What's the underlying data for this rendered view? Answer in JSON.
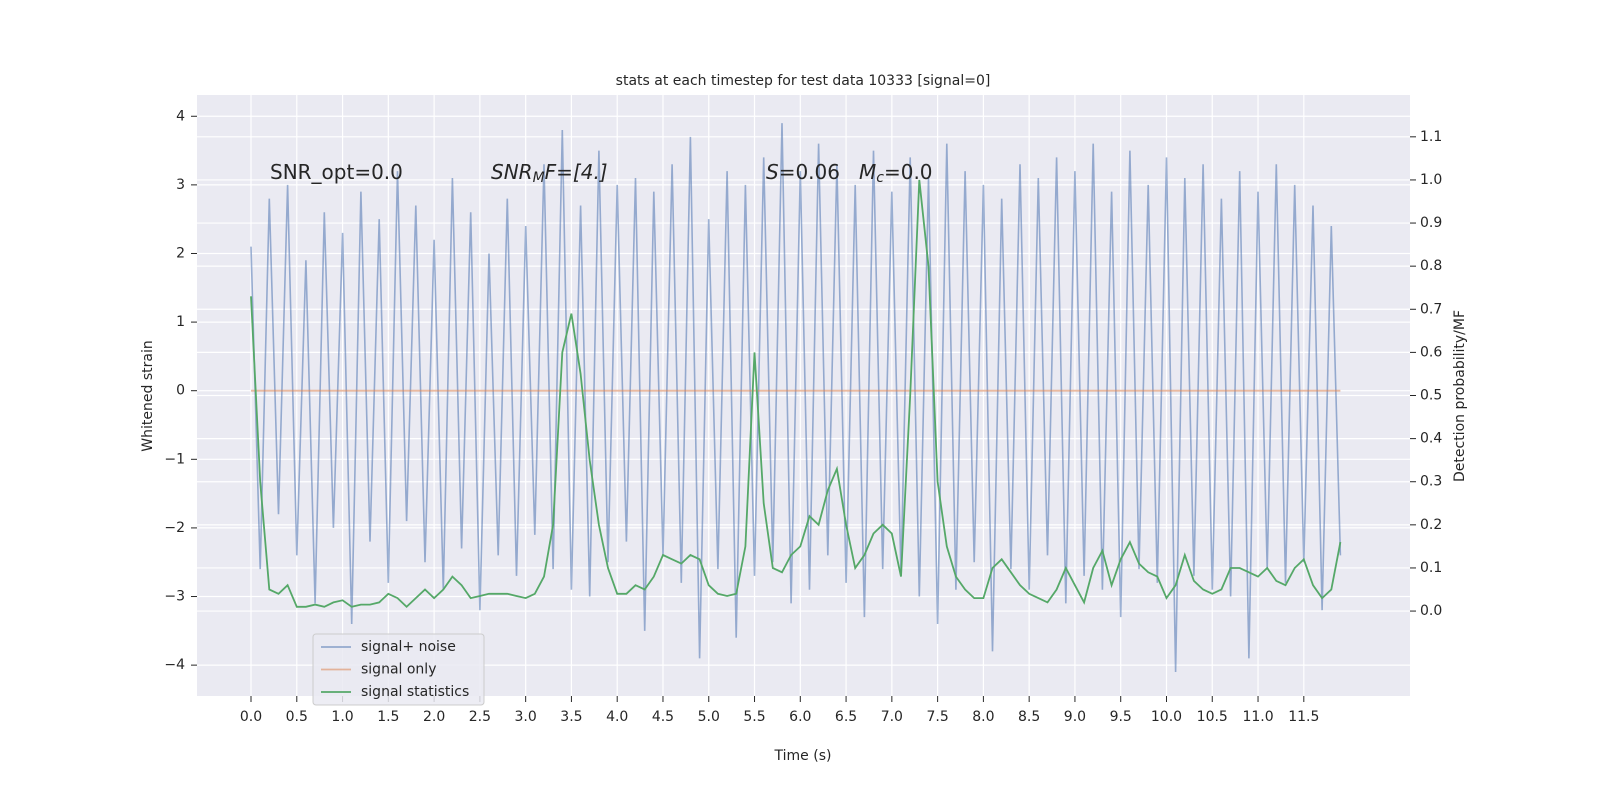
{
  "chart_data": {
    "type": "line",
    "title": "stats at each timestep for test data 10333 [signal=0]",
    "xlabel": "Time (s)",
    "ylabel": "Whitened strain",
    "y2label": "Detection probability/MF",
    "xlim": [
      -0.59,
      12.66
    ],
    "ylim": [
      -4.45,
      4.31
    ],
    "y2lim": [
      -0.197,
      1.197
    ],
    "xticks": [
      {
        "value": 0,
        "label": "0.0"
      },
      {
        "value": 0.5,
        "label": "0.5"
      },
      {
        "value": 1,
        "label": "1.0"
      },
      {
        "value": 1.5,
        "label": "1.5"
      },
      {
        "value": 2,
        "label": "2.0"
      },
      {
        "value": 2.5,
        "label": "2.5"
      },
      {
        "value": 3,
        "label": "3.0"
      },
      {
        "value": 3.5,
        "label": "3.5"
      },
      {
        "value": 4,
        "label": "4.0"
      },
      {
        "value": 4.5,
        "label": "4.5"
      },
      {
        "value": 5,
        "label": "5.0"
      },
      {
        "value": 5.5,
        "label": "5.5"
      },
      {
        "value": 6,
        "label": "6.0"
      },
      {
        "value": 6.5,
        "label": "6.5"
      },
      {
        "value": 7,
        "label": "7.0"
      },
      {
        "value": 7.5,
        "label": "7.5"
      },
      {
        "value": 8,
        "label": "8.0"
      },
      {
        "value": 8.5,
        "label": "8.5"
      },
      {
        "value": 9,
        "label": "9.0"
      },
      {
        "value": 9.5,
        "label": "9.5"
      },
      {
        "value": 10,
        "label": "10.0"
      },
      {
        "value": 10.5,
        "label": "10.5"
      },
      {
        "value": 11,
        "label": "11.0"
      },
      {
        "value": 11.5,
        "label": "11.5"
      }
    ],
    "yticks": [
      -4,
      -3,
      -2,
      -1,
      0,
      1,
      2,
      3,
      4
    ],
    "y2ticks": [
      {
        "value": 0,
        "label": "0.0"
      },
      {
        "value": 0.1,
        "label": "0.1"
      },
      {
        "value": 0.2,
        "label": "0.2"
      },
      {
        "value": 0.3,
        "label": "0.3"
      },
      {
        "value": 0.4,
        "label": "0.4"
      },
      {
        "value": 0.5,
        "label": "0.5"
      },
      {
        "value": 0.6,
        "label": "0.6"
      },
      {
        "value": 0.7,
        "label": "0.7"
      },
      {
        "value": 0.8,
        "label": "0.8"
      },
      {
        "value": 0.9,
        "label": "0.9"
      },
      {
        "value": 1.0,
        "label": "1.0"
      },
      {
        "value": 1.1,
        "label": "1.1"
      }
    ],
    "grid": true,
    "legend": "lower left",
    "annotations": [
      {
        "text": "SNR_opt=0.0"
      },
      {
        "text": "SNR",
        "sub": "M",
        "rest": "F=[4.]"
      },
      {
        "text": "S",
        "rest": "=0.06"
      },
      {
        "text": "M",
        "sub": "c",
        "rest": "=0.0"
      }
    ],
    "x": [
      0,
      0.1,
      0.2,
      0.3,
      0.4,
      0.5,
      0.6,
      0.7,
      0.8,
      0.9,
      1,
      1.1,
      1.2,
      1.3,
      1.4,
      1.5,
      1.6,
      1.7,
      1.8,
      1.9,
      2,
      2.1,
      2.2,
      2.3,
      2.4,
      2.5,
      2.6,
      2.7,
      2.8,
      2.9,
      3,
      3.1,
      3.2,
      3.3,
      3.4,
      3.5,
      3.6,
      3.7,
      3.8,
      3.9,
      4,
      4.1,
      4.2,
      4.3,
      4.4,
      4.5,
      4.6,
      4.7,
      4.8,
      4.9,
      5,
      5.1,
      5.2,
      5.3,
      5.4,
      5.5,
      5.6,
      5.7,
      5.8,
      5.9,
      6,
      6.1,
      6.2,
      6.3,
      6.4,
      6.5,
      6.6,
      6.7,
      6.8,
      6.9,
      7,
      7.1,
      7.2,
      7.3,
      7.4,
      7.5,
      7.6,
      7.7,
      7.8,
      7.9,
      8,
      8.1,
      8.2,
      8.3,
      8.4,
      8.5,
      8.6,
      8.7,
      8.8,
      8.9,
      9,
      9.1,
      9.2,
      9.3,
      9.4,
      9.5,
      9.6,
      9.7,
      9.8,
      9.9,
      10,
      10.1,
      10.2,
      10.3,
      10.4,
      10.5,
      10.6,
      10.7,
      10.8,
      10.9,
      11,
      11.1,
      11.2,
      11.3,
      11.4,
      11.5,
      11.6,
      11.7,
      11.8,
      11.9
    ],
    "series": [
      {
        "name": "signal+ noise",
        "color": "#4c72b0",
        "values": [
          2.1,
          -2.6,
          2.8,
          -1.8,
          3.0,
          -2.4,
          1.9,
          -3.1,
          2.6,
          -2.0,
          2.3,
          -3.4,
          2.9,
          -2.2,
          2.5,
          -2.8,
          3.2,
          -1.9,
          2.7,
          -2.5,
          2.2,
          -2.9,
          3.1,
          -2.3,
          2.6,
          -3.2,
          2.0,
          -2.4,
          2.8,
          -2.7,
          2.4,
          -2.1,
          3.3,
          -2.6,
          3.8,
          -2.9,
          2.7,
          -3.0,
          3.5,
          -2.5,
          3.0,
          -2.2,
          3.1,
          -3.5,
          2.9,
          -2.4,
          3.3,
          -2.8,
          3.7,
          -3.9,
          2.5,
          -2.6,
          3.2,
          -3.6,
          3.0,
          -2.7,
          3.4,
          -2.5,
          3.9,
          -3.1,
          3.2,
          -2.9,
          3.6,
          -2.4,
          3.3,
          -2.8,
          3.0,
          -3.3,
          3.5,
          -2.6,
          2.9,
          -2.7,
          3.4,
          -3.0,
          3.1,
          -3.4,
          3.6,
          -2.9,
          3.2,
          -2.5,
          3.0,
          -3.8,
          2.8,
          -2.6,
          3.3,
          -2.9,
          3.1,
          -2.4,
          3.4,
          -3.1,
          3.2,
          -2.7,
          3.6,
          -2.9,
          2.9,
          -3.3,
          3.5,
          -2.6,
          3.0,
          -2.8,
          3.4,
          -4.1,
          3.1,
          -2.7,
          3.3,
          -2.9,
          2.8,
          -3.0,
          3.2,
          -3.9,
          2.9,
          -2.6,
          3.3,
          -2.8,
          3.0,
          -2.5,
          2.7,
          -3.2,
          2.4,
          -2.4
        ]
      },
      {
        "name": "signal only",
        "color": "#dd8452",
        "x": [
          0,
          11.9
        ],
        "values": [
          0,
          0
        ]
      },
      {
        "name": "signal statistics",
        "color": "#55a868",
        "axis": "y2",
        "values": [
          0.73,
          0.3,
          0.05,
          0.04,
          0.06,
          0.01,
          0.01,
          0.015,
          0.01,
          0.02,
          0.025,
          0.01,
          0.015,
          0.015,
          0.02,
          0.04,
          0.03,
          0.01,
          0.03,
          0.05,
          0.03,
          0.05,
          0.08,
          0.06,
          0.03,
          0.035,
          0.04,
          0.04,
          0.04,
          0.035,
          0.03,
          0.04,
          0.08,
          0.2,
          0.6,
          0.69,
          0.55,
          0.35,
          0.2,
          0.1,
          0.04,
          0.04,
          0.06,
          0.05,
          0.08,
          0.13,
          0.12,
          0.11,
          0.13,
          0.12,
          0.06,
          0.04,
          0.035,
          0.04,
          0.15,
          0.6,
          0.25,
          0.1,
          0.09,
          0.13,
          0.15,
          0.22,
          0.2,
          0.28,
          0.33,
          0.2,
          0.1,
          0.13,
          0.18,
          0.2,
          0.18,
          0.08,
          0.5,
          1.0,
          0.8,
          0.3,
          0.15,
          0.08,
          0.05,
          0.03,
          0.03,
          0.1,
          0.12,
          0.09,
          0.06,
          0.04,
          0.03,
          0.02,
          0.05,
          0.1,
          0.06,
          0.02,
          0.1,
          0.14,
          0.06,
          0.12,
          0.16,
          0.11,
          0.09,
          0.08,
          0.03,
          0.06,
          0.13,
          0.07,
          0.05,
          0.04,
          0.05,
          0.1,
          0.1,
          0.09,
          0.08,
          0.1,
          0.07,
          0.06,
          0.1,
          0.12,
          0.06,
          0.03,
          0.05,
          0.16
        ]
      }
    ]
  }
}
